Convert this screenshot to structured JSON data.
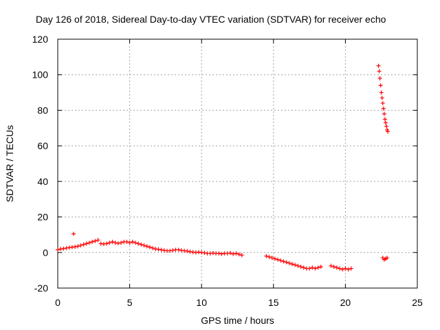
{
  "chart_data": {
    "type": "scatter",
    "title": "Day 126 of 2018, Sidereal Day-to-day VTEC variation (SDTVAR) for receiver echo",
    "xlabel": "GPS time / hours",
    "ylabel": "SDTVAR / TECUs",
    "xlim": [
      0,
      25
    ],
    "ylim": [
      -20,
      120
    ],
    "xticks": [
      "0",
      "5",
      "10",
      "15",
      "20",
      "25"
    ],
    "yticks": [
      "-20",
      "0",
      "20",
      "40",
      "60",
      "80",
      "100",
      "120"
    ],
    "grid": true,
    "marker": "+",
    "color": "#ff0000",
    "series": [
      {
        "name": "SDTVAR",
        "x": [
          0.0,
          0.2,
          0.4,
          0.6,
          0.8,
          1.0,
          1.1,
          1.2,
          1.4,
          1.6,
          1.8,
          2.0,
          2.2,
          2.4,
          2.6,
          2.8,
          3.0,
          3.2,
          3.4,
          3.6,
          3.8,
          4.0,
          4.2,
          4.4,
          4.6,
          4.8,
          5.0,
          5.2,
          5.4,
          5.6,
          5.8,
          6.0,
          6.2,
          6.4,
          6.6,
          6.8,
          7.0,
          7.2,
          7.4,
          7.6,
          7.8,
          8.0,
          8.2,
          8.4,
          8.6,
          8.8,
          9.0,
          9.2,
          9.4,
          9.6,
          9.8,
          10.0,
          10.2,
          10.4,
          10.6,
          10.8,
          11.0,
          11.2,
          11.4,
          11.6,
          11.8,
          12.0,
          12.2,
          12.4,
          12.6,
          12.8,
          14.5,
          14.7,
          14.9,
          15.1,
          15.3,
          15.5,
          15.7,
          15.9,
          16.1,
          16.3,
          16.5,
          16.7,
          16.9,
          17.1,
          17.3,
          17.5,
          17.7,
          17.9,
          18.1,
          18.3,
          19.0,
          19.2,
          19.4,
          19.6,
          19.8,
          20.0,
          20.2,
          20.4,
          22.3,
          22.35,
          22.4,
          22.45,
          22.5,
          22.55,
          22.6,
          22.65,
          22.7,
          22.75,
          22.8,
          22.85,
          22.9,
          22.95,
          22.6,
          22.7,
          22.8,
          22.9
        ],
        "y": [
          1.5,
          2.0,
          2.2,
          2.5,
          2.8,
          3.0,
          10.5,
          3.2,
          3.5,
          4.0,
          4.5,
          5.0,
          5.5,
          6.0,
          6.5,
          7.0,
          5.0,
          4.8,
          5.0,
          5.5,
          6.0,
          5.5,
          5.2,
          5.5,
          6.0,
          6.0,
          5.5,
          6.0,
          5.5,
          5.0,
          4.5,
          4.0,
          3.5,
          3.0,
          2.5,
          2.0,
          1.8,
          1.5,
          1.2,
          1.0,
          1.0,
          1.2,
          1.5,
          1.5,
          1.2,
          1.0,
          0.8,
          0.5,
          0.2,
          0.0,
          0.2,
          0.0,
          -0.2,
          -0.5,
          -0.5,
          -0.3,
          -0.5,
          -0.5,
          -0.8,
          -0.5,
          -0.5,
          -0.3,
          -0.8,
          -0.5,
          -1.0,
          -1.5,
          -2.0,
          -2.5,
          -3.0,
          -3.5,
          -4.0,
          -4.5,
          -5.0,
          -5.5,
          -6.0,
          -6.5,
          -7.0,
          -7.5,
          -8.0,
          -8.5,
          -9.0,
          -9.0,
          -8.5,
          -9.0,
          -8.5,
          -8.0,
          -7.5,
          -8.0,
          -8.5,
          -9.0,
          -9.5,
          -9.0,
          -9.5,
          -9.0,
          105,
          102,
          98,
          94,
          90,
          87,
          84,
          81,
          78,
          75,
          73,
          71,
          69,
          68,
          -3.0,
          -4.0,
          -3.5,
          -3.0
        ]
      }
    ]
  }
}
